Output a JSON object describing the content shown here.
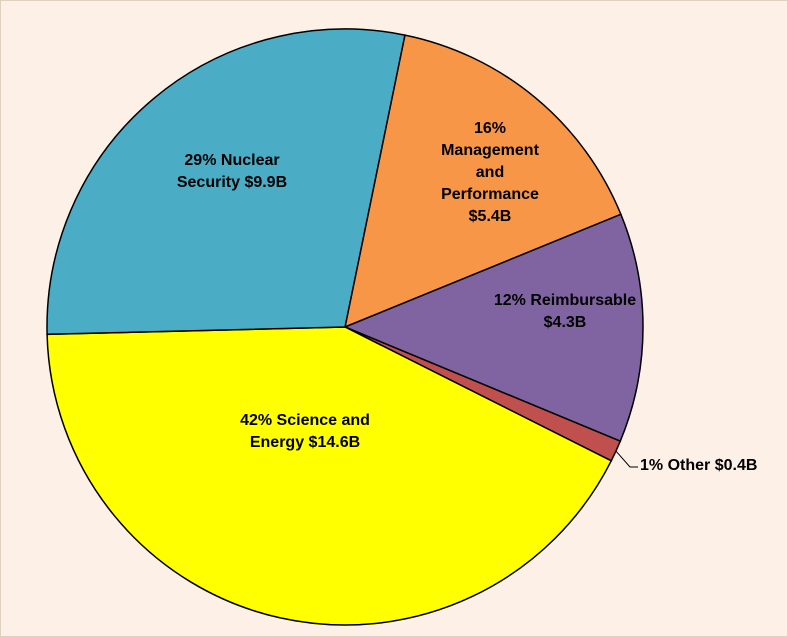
{
  "chart_data": {
    "type": "pie",
    "categories": [
      "Management and Performance",
      "Reimbursable",
      "Other",
      "Science and Energy",
      "Nuclear Security"
    ],
    "values": [
      5.4,
      4.3,
      0.4,
      14.6,
      9.9
    ],
    "value_labels": [
      "$5.4B",
      "$4.3B",
      "$0.4B",
      "$14.6B",
      "$9.9B"
    ],
    "percents": [
      16,
      12,
      1,
      42,
      29
    ],
    "percent_labels": [
      "16%",
      "12%",
      "1%",
      "42%",
      "29%"
    ],
    "colors": [
      "#f79646",
      "#8064a2",
      "#c0504d",
      "#ffff00",
      "#4bacc6"
    ]
  }
}
